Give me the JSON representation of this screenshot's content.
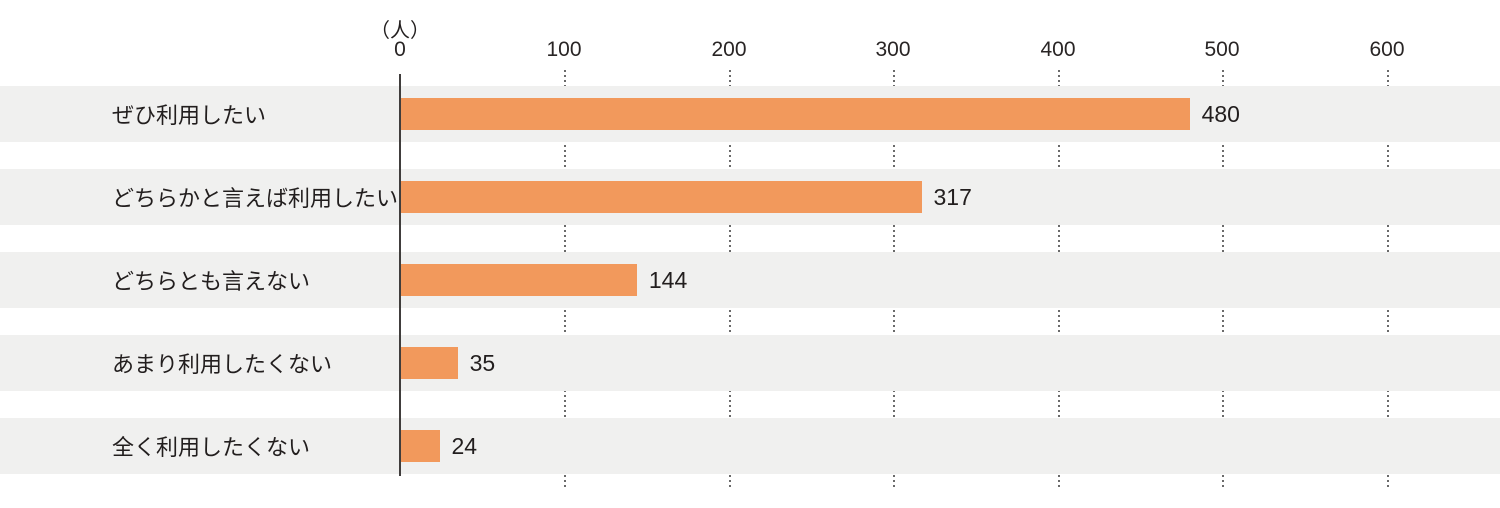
{
  "chart_data": {
    "type": "bar",
    "orientation": "horizontal",
    "unit": "（人）",
    "categories": [
      "ぜひ利用したい",
      "どちらかと言えば利用したい",
      "どちらとも言えない",
      "あまり利用したくない",
      "全く利用したくない"
    ],
    "values": [
      480,
      317,
      144,
      35,
      24
    ],
    "ticks": [
      0,
      100,
      200,
      300,
      400,
      500,
      600
    ],
    "xlim": [
      0,
      600
    ],
    "grid": "dotted-vertical-in-row-gaps",
    "legend": "none",
    "bar_color": "#F2995C",
    "row_stripe_color": "#F0F0EF",
    "axis_line_color": "#403D3C",
    "text_color": "#221E1E"
  }
}
